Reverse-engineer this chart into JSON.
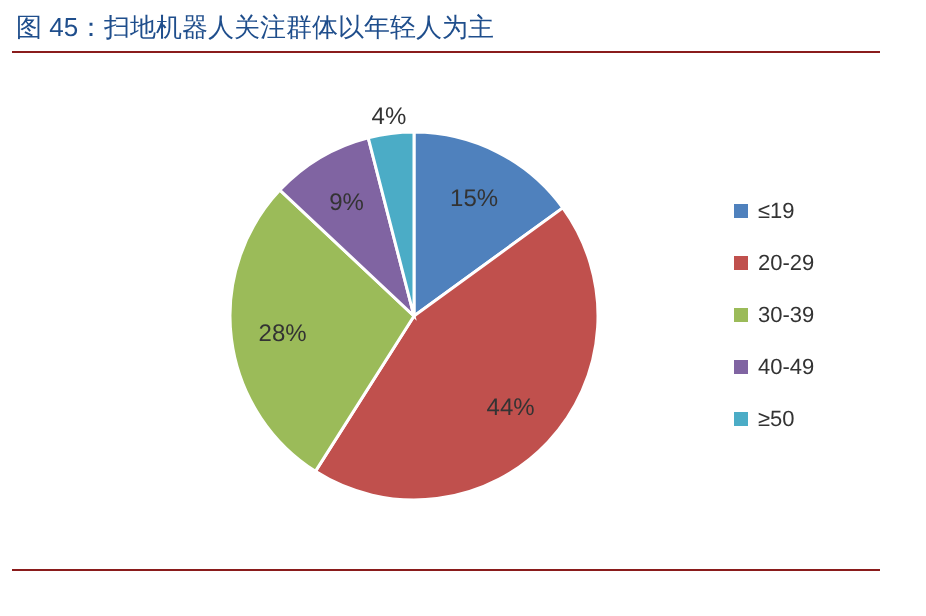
{
  "chart_data": {
    "type": "pie",
    "title": "图 45：扫地机器人关注群体以年轻人为主",
    "categories": [
      "≤19",
      "20-29",
      "30-39",
      "40-49",
      "≥50"
    ],
    "values": [
      15,
      44,
      28,
      9,
      4
    ],
    "colors": [
      "#4f81bd",
      "#c0504d",
      "#9bbb59",
      "#8064a2",
      "#4bacc6"
    ],
    "value_labels": [
      "15%",
      "44%",
      "28%",
      "9%",
      "4%"
    ],
    "legend": "right"
  }
}
